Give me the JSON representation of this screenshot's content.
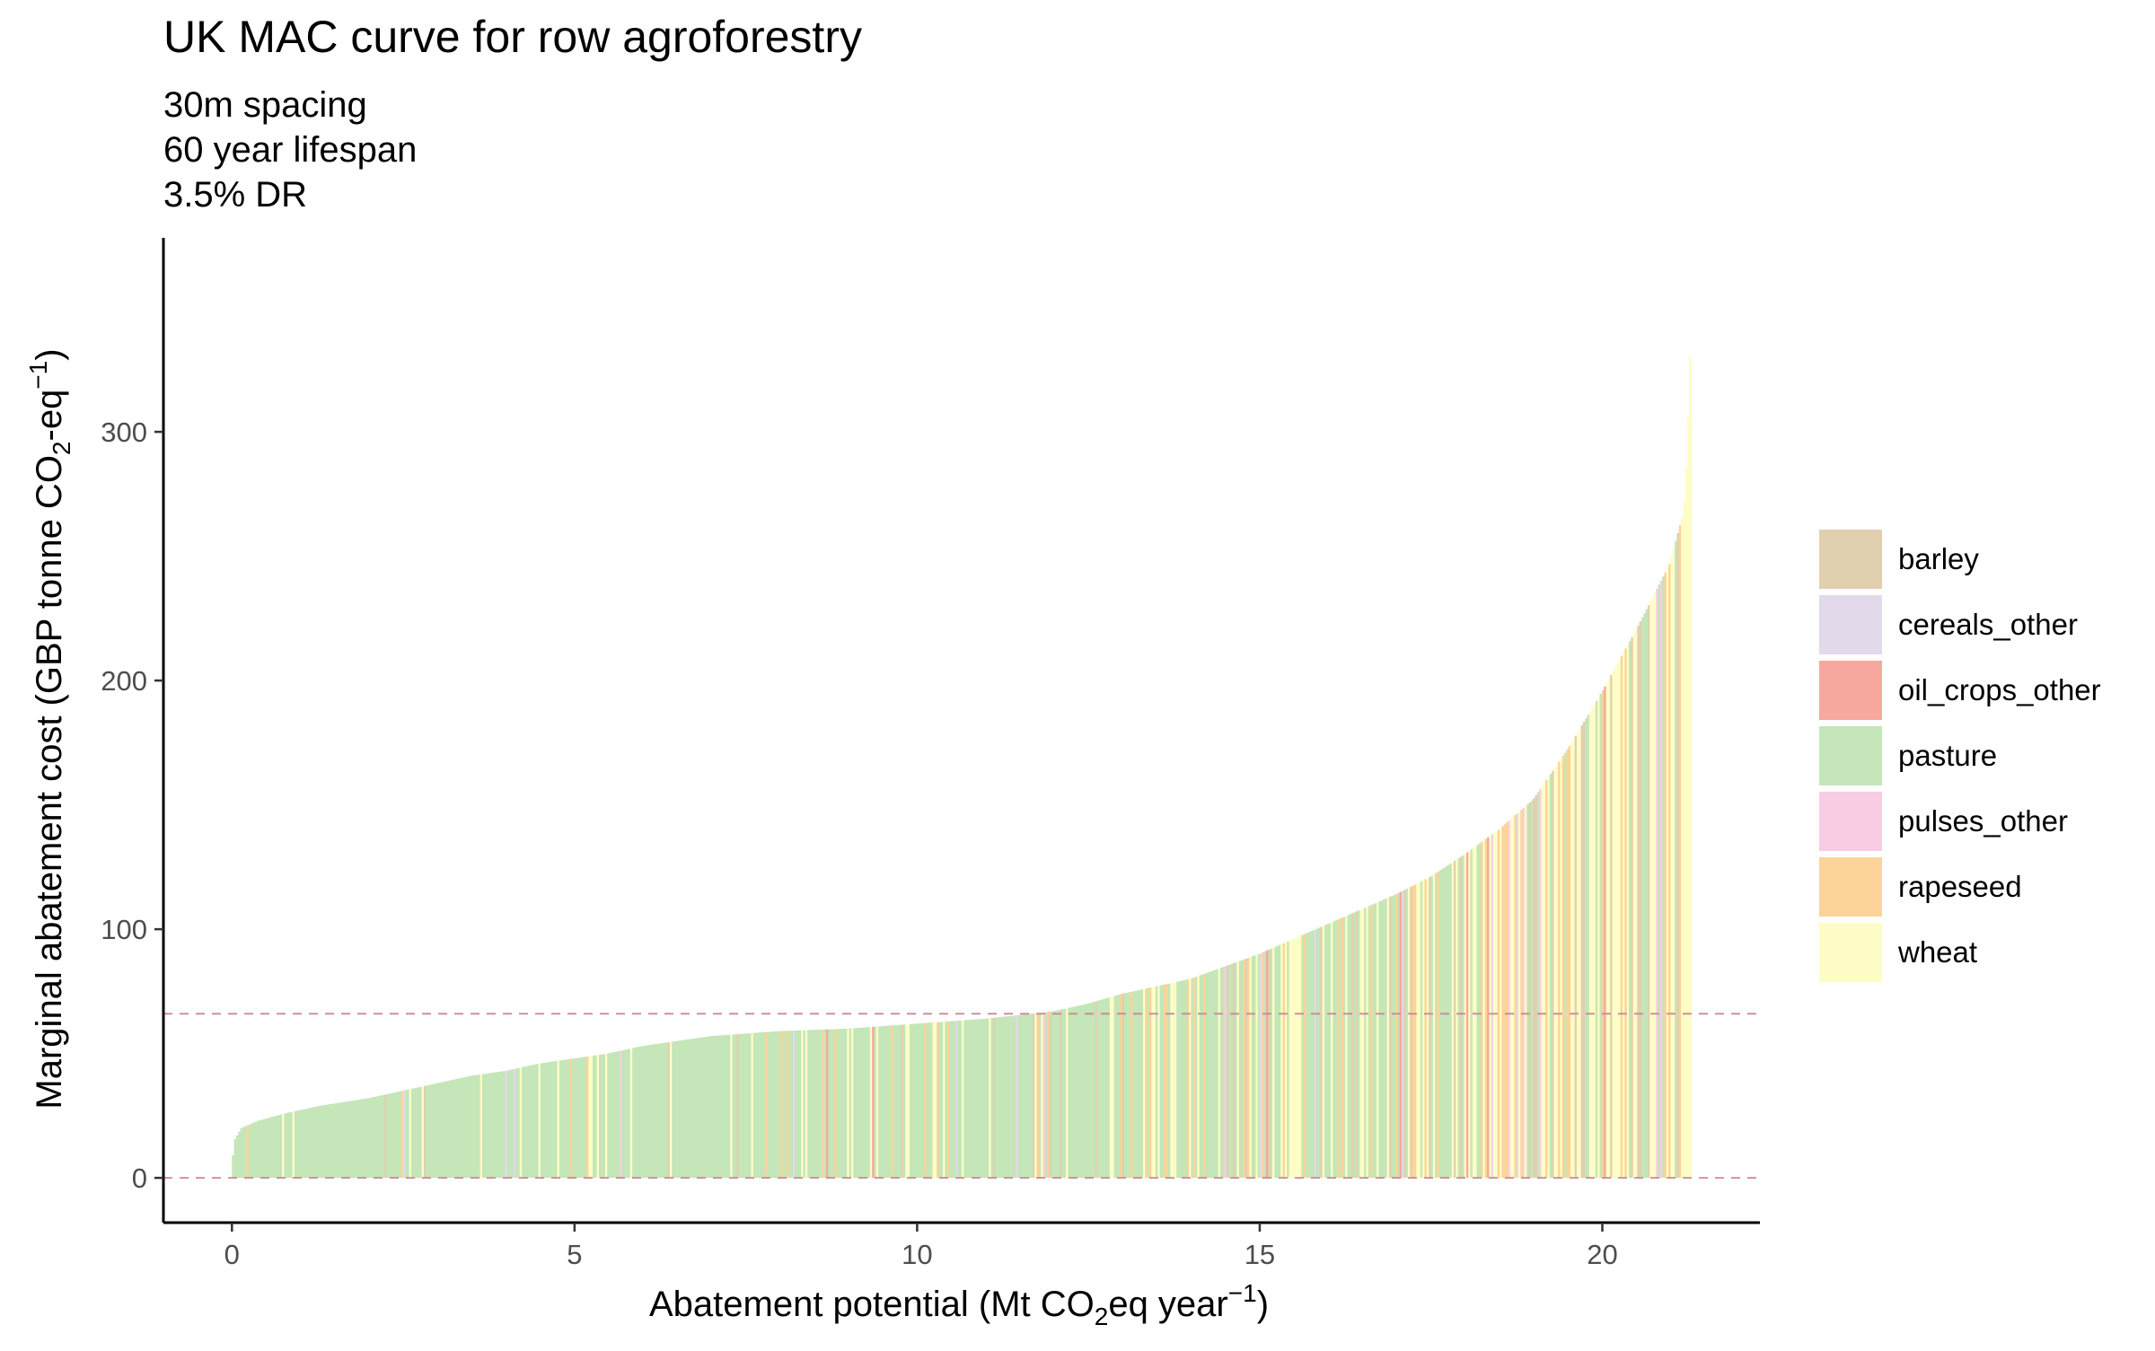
{
  "chart_data": {
    "type": "bar",
    "title": "UK MAC curve for row agroforestry",
    "subtitle_lines": [
      "30m spacing",
      "60 year lifespan",
      "3.5% DR"
    ],
    "xlabel": {
      "pre": "Abatement potential (Mt CO",
      "sub": "2",
      "mid": "eq year",
      "sup": "−1",
      "post": ")"
    },
    "ylabel": {
      "pre": "Marginal abatement cost (GBP tonne CO",
      "sub": "2",
      "mid": "-eq",
      "sup": "−1",
      "post": ")"
    },
    "xlim": [
      -1,
      22.3
    ],
    "ylim": [
      -18,
      378
    ],
    "x_ticks": [
      0,
      5,
      10,
      15,
      20
    ],
    "x_tick_labels": [
      "0",
      "5",
      "10",
      "15",
      "20"
    ],
    "y_ticks": [
      0,
      100,
      200,
      300
    ],
    "y_tick_labels": [
      "0",
      "100",
      "200",
      "300"
    ],
    "reference_lines": [
      {
        "y": 0,
        "color": "#c98a95"
      },
      {
        "y": 66,
        "color": "#c98a95"
      }
    ],
    "x_end": 21.3,
    "curve_knots": [
      [
        0,
        0
      ],
      [
        0.05,
        15
      ],
      [
        0.15,
        20
      ],
      [
        0.4,
        23
      ],
      [
        0.8,
        26
      ],
      [
        1.3,
        29
      ],
      [
        2,
        32
      ],
      [
        2.5,
        35
      ],
      [
        3,
        38
      ],
      [
        3.5,
        41
      ],
      [
        4,
        43
      ],
      [
        4.5,
        46
      ],
      [
        5,
        48
      ],
      [
        5.5,
        50
      ],
      [
        6,
        53
      ],
      [
        6.5,
        55
      ],
      [
        7,
        57
      ],
      [
        8,
        59
      ],
      [
        9,
        60
      ],
      [
        10,
        62
      ],
      [
        11,
        64
      ],
      [
        12,
        67
      ],
      [
        12.5,
        70
      ],
      [
        13,
        74
      ],
      [
        13.5,
        77
      ],
      [
        14,
        80
      ],
      [
        14.5,
        85
      ],
      [
        15,
        90
      ],
      [
        15.5,
        96
      ],
      [
        16,
        102
      ],
      [
        16.5,
        108
      ],
      [
        17,
        114
      ],
      [
        17.5,
        121
      ],
      [
        18,
        130
      ],
      [
        18.5,
        140
      ],
      [
        19,
        152
      ],
      [
        19.5,
        172
      ],
      [
        20,
        195
      ],
      [
        20.5,
        220
      ],
      [
        21,
        247
      ],
      [
        21.2,
        268
      ],
      [
        21.25,
        290
      ],
      [
        21.3,
        330
      ]
    ],
    "series": [
      {
        "name": "barley",
        "color": "#e0d0b0"
      },
      {
        "name": "cereals_other",
        "color": "#e2d9eb"
      },
      {
        "name": "oil_crops_other",
        "color": "#f6a79e"
      },
      {
        "name": "pasture",
        "color": "#c4e6b8"
      },
      {
        "name": "pulses_other",
        "color": "#f8cde4"
      },
      {
        "name": "rapeseed",
        "color": "#fcd398"
      },
      {
        "name": "wheat",
        "color": "#fefdc6"
      }
    ],
    "legend_position": "right",
    "grid": false
  }
}
